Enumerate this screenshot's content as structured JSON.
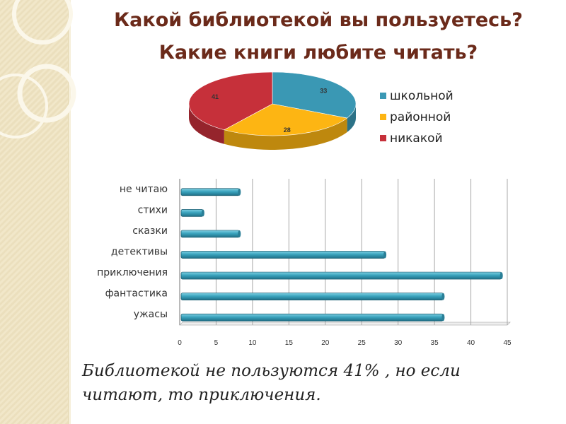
{
  "title": {
    "line1": "Какой библиотекой вы пользуетесь?",
    "line2": "Какие книги  любите читать?"
  },
  "chart_data": [
    {
      "type": "pie",
      "categories": [
        "школьной",
        "районной",
        "никакой"
      ],
      "values": [
        33,
        28,
        41
      ],
      "colors": [
        "#3a98b4",
        "#fdb513",
        "#c6303a"
      ],
      "legend_position": "right",
      "style": "3d"
    },
    {
      "type": "bar",
      "orientation": "horizontal",
      "categories": [
        "не читаю",
        "стихи",
        "сказки",
        "детективы",
        "приключения",
        "фантастика",
        "ужасы"
      ],
      "values": [
        8,
        3,
        8,
        28,
        44,
        36,
        36
      ],
      "xlim": [
        0,
        45
      ],
      "xticks": [
        0,
        5,
        10,
        15,
        20,
        25,
        30,
        35,
        40,
        45
      ],
      "grid": true,
      "color": "#3aa3bd"
    }
  ],
  "caption": {
    "line1": "Библиотекой не пользуются 41% , но если",
    "line2": "читают, то приключения."
  }
}
